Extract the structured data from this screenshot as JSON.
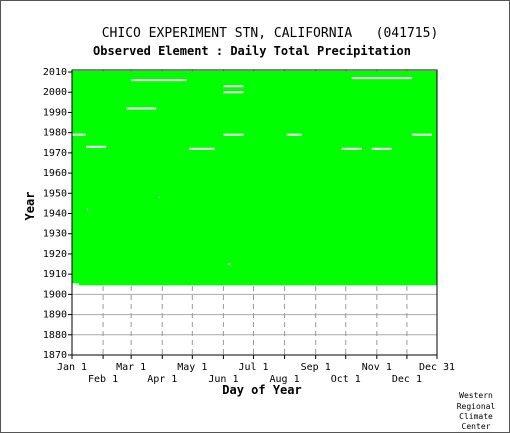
{
  "chart_data": {
    "type": "heatmap",
    "title": "CHICO EXPERIMENT STN, CALIFORNIA   (041715)",
    "subtitle": "Observed Element : Daily Total Precipitation",
    "xlabel": "Day of Year",
    "ylabel": "Year",
    "ylim": [
      1870,
      2011
    ],
    "xlim": [
      1,
      365
    ],
    "x_ticks_upper": [
      {
        "label": "Jan 1",
        "day": 1
      },
      {
        "label": "Mar 1",
        "day": 60
      },
      {
        "label": "May 1",
        "day": 121
      },
      {
        "label": "Jul 1",
        "day": 182
      },
      {
        "label": "Sep 1",
        "day": 244
      },
      {
        "label": "Nov 1",
        "day": 305
      },
      {
        "label": "Dec 31",
        "day": 365
      }
    ],
    "x_ticks_lower": [
      {
        "label": "Feb 1",
        "day": 32
      },
      {
        "label": "Apr 1",
        "day": 91
      },
      {
        "label": "Jun 1",
        "day": 152
      },
      {
        "label": "Aug 1",
        "day": 213
      },
      {
        "label": "Oct 1",
        "day": 274
      },
      {
        "label": "Dec 1",
        "day": 335
      }
    ],
    "y_ticks": [
      1870,
      1880,
      1890,
      1900,
      1910,
      1920,
      1930,
      1940,
      1950,
      1960,
      1970,
      1980,
      1990,
      2000,
      2010
    ],
    "grid": true,
    "data_color": "#00ff00",
    "missing_color": "#ffffff",
    "period_of_record": {
      "start_year": 1905,
      "end_year": 2010
    },
    "missing_segments": [
      {
        "year": 1905,
        "start_day": 1,
        "end_day": 8
      },
      {
        "year": 1979,
        "start_day": 1,
        "end_day": 15
      },
      {
        "year": 1973,
        "start_day": 15,
        "end_day": 35
      },
      {
        "year": 1992,
        "start_day": 55,
        "end_day": 85
      },
      {
        "year": 1972,
        "start_day": 118,
        "end_day": 143
      },
      {
        "year": 1979,
        "start_day": 152,
        "end_day": 172
      },
      {
        "year": 2003,
        "start_day": 152,
        "end_day": 172
      },
      {
        "year": 2000,
        "start_day": 152,
        "end_day": 172
      },
      {
        "year": 1979,
        "start_day": 215,
        "end_day": 230
      },
      {
        "year": 1972,
        "start_day": 270,
        "end_day": 290
      },
      {
        "year": 1972,
        "start_day": 300,
        "end_day": 320
      },
      {
        "year": 1979,
        "start_day": 340,
        "end_day": 360
      },
      {
        "year": 1915,
        "start_day": 157,
        "end_day": 159
      },
      {
        "year": 1948,
        "start_day": 88,
        "end_day": 89
      },
      {
        "year": 1942,
        "start_day": 16,
        "end_day": 17
      },
      {
        "year": 2006,
        "start_day": 60,
        "end_day": 115
      },
      {
        "year": 2007,
        "start_day": 280,
        "end_day": 340
      }
    ],
    "credit": [
      "Western",
      "Regional",
      "Climate",
      "Center"
    ]
  }
}
